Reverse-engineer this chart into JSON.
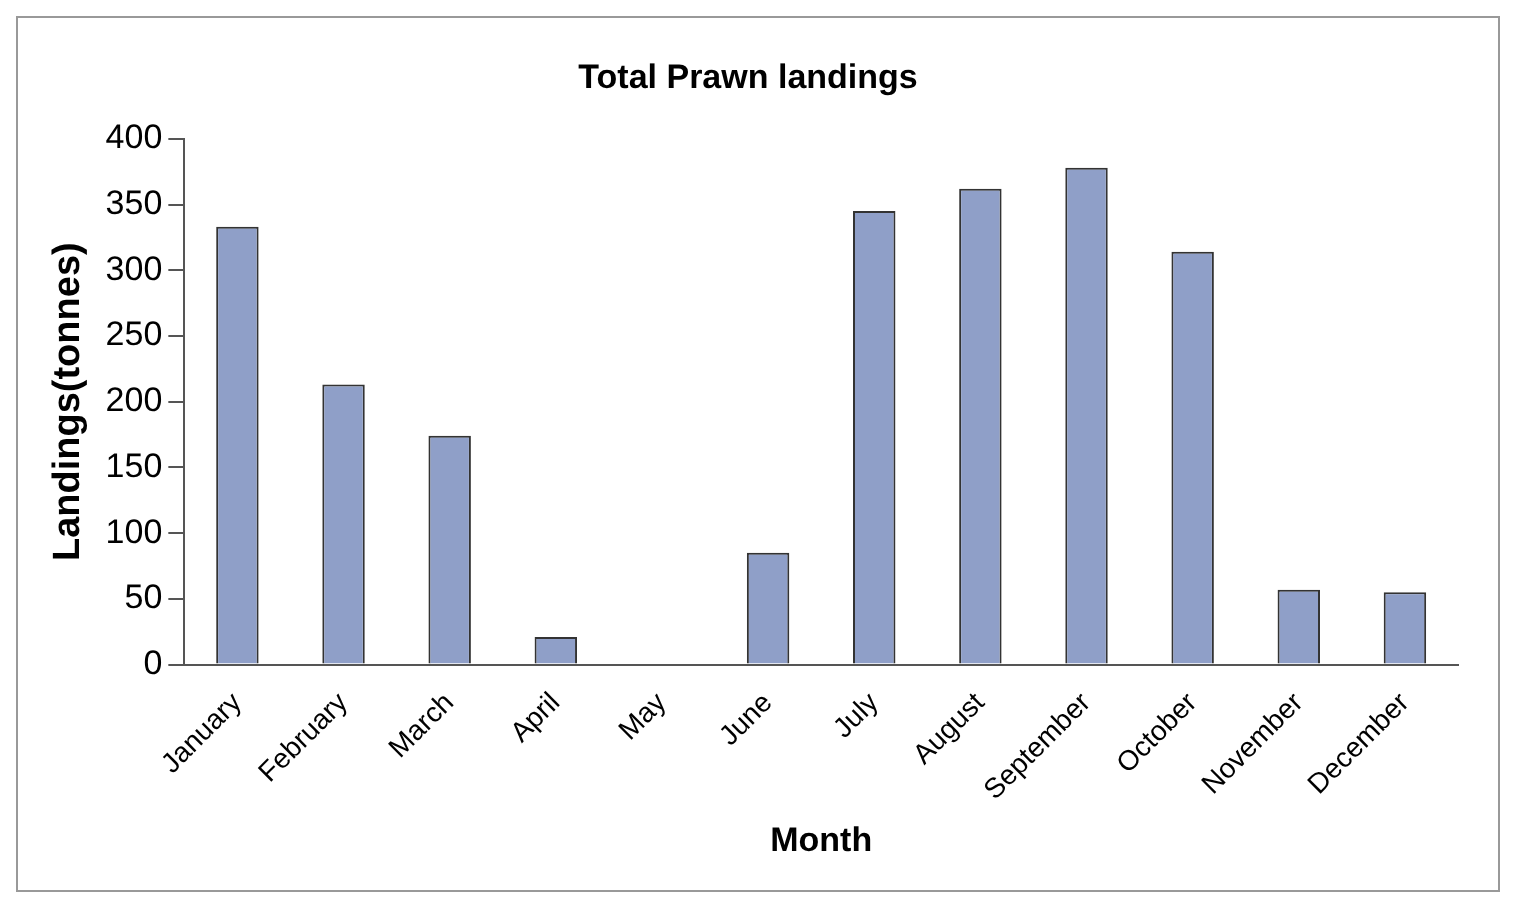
{
  "chart_data": {
    "type": "bar",
    "title": "Total Prawn landings",
    "xlabel": "Month",
    "ylabel": "Landings(tonnes)",
    "categories": [
      "January",
      "February",
      "March",
      "April",
      "May",
      "June",
      "July",
      "August",
      "September",
      "October",
      "November",
      "December"
    ],
    "values": [
      333,
      213,
      174,
      21,
      0,
      85,
      345,
      362,
      378,
      314,
      57,
      55
    ],
    "color": "#8f9fc8",
    "ylim": [
      0,
      400
    ],
    "yticks": [
      0,
      50,
      100,
      150,
      200,
      250,
      300,
      350,
      400
    ],
    "grid": false,
    "legend": false
  }
}
